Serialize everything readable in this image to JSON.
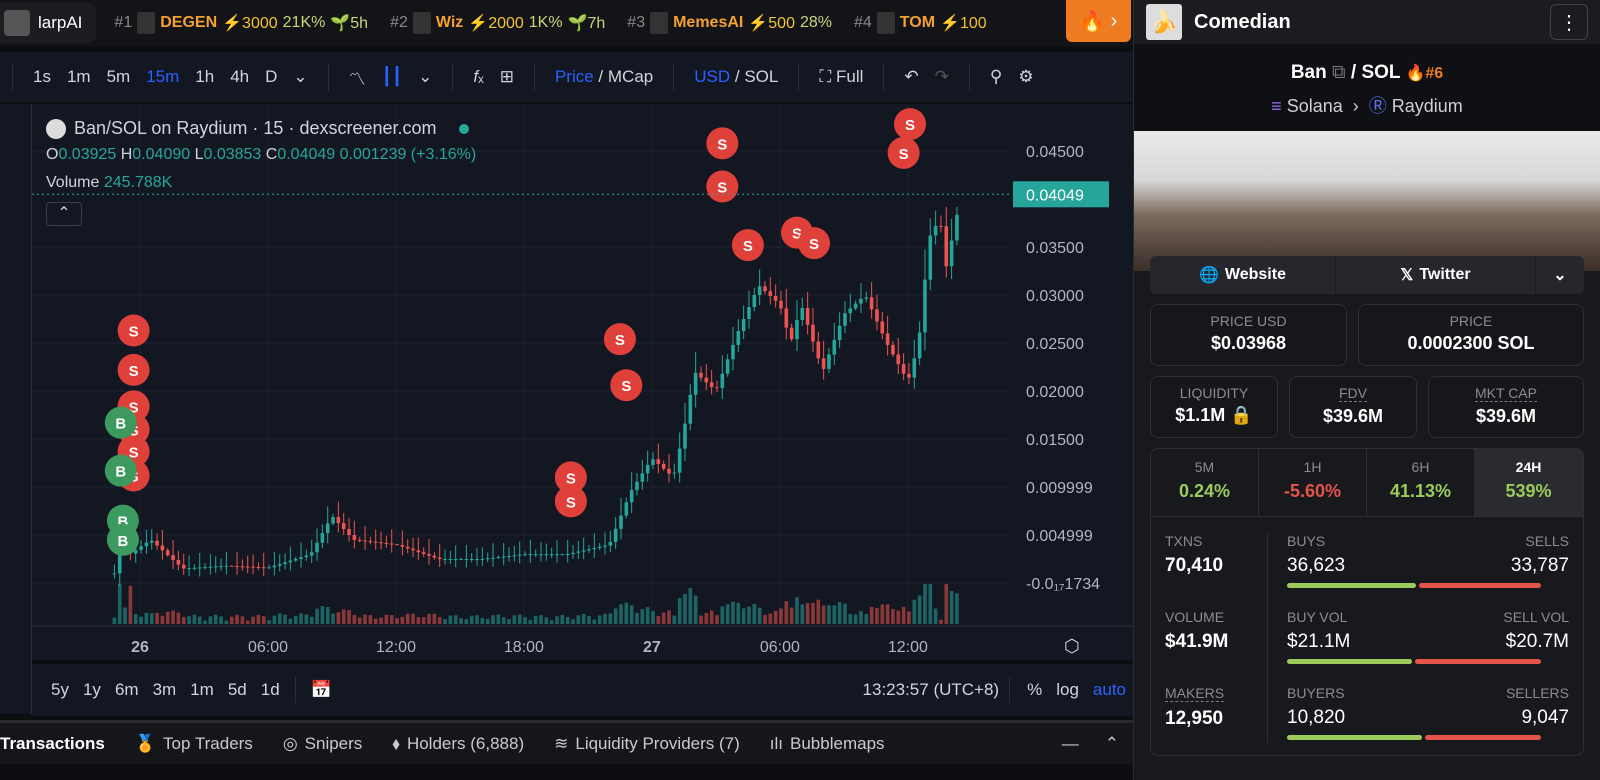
{
  "ticker": {
    "brand": "larpAI",
    "items": [
      {
        "rank": "#1",
        "name": "DEGEN",
        "boost": "3000",
        "change": "21K%",
        "age": "5h"
      },
      {
        "rank": "#2",
        "name": "Wiz",
        "boost": "2000",
        "change": "1K%",
        "age": "7h"
      },
      {
        "rank": "#3",
        "name": "MemesAI",
        "boost": "500",
        "change": "28%",
        "age": ""
      },
      {
        "rank": "#4",
        "name": "TOM",
        "boost": "100",
        "change": "",
        "age": ""
      }
    ]
  },
  "toolbar": {
    "intervals": [
      "1s",
      "1m",
      "5m",
      "15m",
      "1h",
      "4h",
      "D"
    ],
    "active_interval": "15m",
    "price": "Price",
    "mcap": "MCap",
    "usd": "USD",
    "sol": "SOL",
    "full": "Full"
  },
  "legend": {
    "title": "Ban/SOL on Raydium · 15 · dexscreener.com",
    "o": "0.03925",
    "h": "0.04090",
    "l": "0.03853",
    "c": "0.04049",
    "change": "0.001239 (+3.16%)",
    "volume_label": "Volume",
    "volume": "245.788K"
  },
  "chart_data": {
    "type": "candlestick",
    "ylim": [
      -0.001734,
      0.047
    ],
    "y_ticks": [
      "0.04500",
      "0.03500",
      "0.03000",
      "0.02500",
      "0.02000",
      "0.01500",
      "0.009999",
      "0.004999",
      "-0.0₁₇1734"
    ],
    "y_tick_values": [
      0.045,
      0.035,
      0.03,
      0.025,
      0.02,
      0.015,
      0.009999,
      0.004999,
      0
    ],
    "x_ticks": [
      "26",
      "06:00",
      "12:00",
      "18:00",
      "27",
      "06:00",
      "12:00"
    ],
    "x_tick_hours": [
      0,
      6,
      12,
      18,
      24,
      30,
      36
    ],
    "current_price": "0.04049",
    "price_path": [
      [
        -1.2,
        0.001
      ],
      [
        -0.8,
        0.008
      ],
      [
        -0.5,
        0.003
      ],
      [
        0.5,
        0.0045
      ],
      [
        2,
        0.0015
      ],
      [
        4,
        0.0018
      ],
      [
        6,
        0.0016
      ],
      [
        8,
        0.003
      ],
      [
        9,
        0.007
      ],
      [
        10,
        0.0045
      ],
      [
        12,
        0.004
      ],
      [
        14,
        0.0025
      ],
      [
        16,
        0.0025
      ],
      [
        18,
        0.003
      ],
      [
        20,
        0.003
      ],
      [
        21,
        0.0035
      ],
      [
        22,
        0.004
      ],
      [
        23,
        0.0095
      ],
      [
        24,
        0.013
      ],
      [
        25,
        0.011
      ],
      [
        25.5,
        0.016
      ],
      [
        26,
        0.022
      ],
      [
        27,
        0.02
      ],
      [
        28,
        0.026
      ],
      [
        29,
        0.031
      ],
      [
        30,
        0.029
      ],
      [
        30.5,
        0.025
      ],
      [
        31,
        0.029
      ],
      [
        32,
        0.022
      ],
      [
        33,
        0.028
      ],
      [
        34,
        0.03
      ],
      [
        35,
        0.025
      ],
      [
        36,
        0.021
      ],
      [
        36.5,
        0.025
      ],
      [
        37,
        0.036
      ],
      [
        37.5,
        0.038
      ],
      [
        37.8,
        0.033
      ],
      [
        38.5,
        0.0405
      ]
    ],
    "markers": [
      [
        -0.3,
        0.0263,
        "S"
      ],
      [
        -0.3,
        0.0222,
        "S"
      ],
      [
        -0.3,
        0.0184,
        "S"
      ],
      [
        -0.3,
        0.016,
        "S"
      ],
      [
        -0.3,
        0.0137,
        "S"
      ],
      [
        -0.3,
        0.0112,
        "S"
      ],
      [
        -0.8,
        0.0065,
        "B"
      ],
      [
        -0.9,
        0.0167,
        "B"
      ],
      [
        -0.9,
        0.0117,
        "B"
      ],
      [
        -0.8,
        0.0045,
        "B"
      ],
      [
        20.2,
        0.0085,
        "S"
      ],
      [
        20.2,
        0.011,
        "S"
      ],
      [
        22.5,
        0.0254,
        "S"
      ],
      [
        22.8,
        0.0206,
        "S"
      ],
      [
        27.3,
        0.0458,
        "S"
      ],
      [
        27.3,
        0.0413,
        "S"
      ],
      [
        28.5,
        0.0352,
        "S"
      ],
      [
        30.8,
        0.0365,
        "S"
      ],
      [
        31.6,
        0.0354,
        "S"
      ],
      [
        35.8,
        0.0448,
        "S"
      ],
      [
        36.1,
        0.0478,
        "S"
      ]
    ],
    "marker_labels": {
      "S": "S",
      "B": "B"
    }
  },
  "range": {
    "items": [
      "5y",
      "1y",
      "6m",
      "3m",
      "1m",
      "5d",
      "1d"
    ],
    "time": "13:23:57 (UTC+8)",
    "percent": "%",
    "log": "log",
    "auto": "auto"
  },
  "tabs": [
    "Transactions",
    "Top Traders",
    "Snipers",
    "Holders (6,888)",
    "Liquidity Providers (7)",
    "Bubblemaps"
  ],
  "panel": {
    "name": "Comedian",
    "base": "Ban",
    "quote": "SOL",
    "rank": "#6",
    "chain": "Solana",
    "dex": "Raydium",
    "website": "Website",
    "twitter": "Twitter",
    "price_usd_label": "PRICE USD",
    "price_usd": "$0.03968",
    "price_label": "PRICE",
    "price_sol": "0.0002300 SOL",
    "liquidity_label": "LIQUIDITY",
    "liquidity": "$1.1M",
    "fdv_label": "FDV",
    "fdv": "$39.6M",
    "mcap_label": "MKT CAP",
    "mcap": "$39.6M",
    "periods": [
      {
        "label": "5M",
        "value": "0.24%"
      },
      {
        "label": "1H",
        "value": "-5.60%"
      },
      {
        "label": "6H",
        "value": "41.13%"
      },
      {
        "label": "24H",
        "value": "539%"
      }
    ],
    "txns_label": "TXNS",
    "txns": "70,410",
    "volume_label": "VOLUME",
    "volume": "$41.9M",
    "makers_label": "MAKERS",
    "makers": "12,950",
    "buys_label": "BUYS",
    "buys": "36,623",
    "sells_label": "SELLS",
    "sells": "33,787",
    "buyvol_label": "BUY VOL",
    "buyvol": "$21.1M",
    "sellvol_label": "SELL VOL",
    "sellvol": "$20.7M",
    "buyers_label": "BUYERS",
    "buyers": "10,820",
    "sellers_label": "SELLERS",
    "sellers": "9,047",
    "buy_share": [
      0.52,
      0.505,
      0.545
    ]
  },
  "colors": {
    "up": "#26a69a",
    "down": "#ef5350",
    "sell_marker": "#e0403a",
    "buy_marker": "#3d9a5f",
    "accent": "#2962ff",
    "fire": "#f07c22"
  }
}
